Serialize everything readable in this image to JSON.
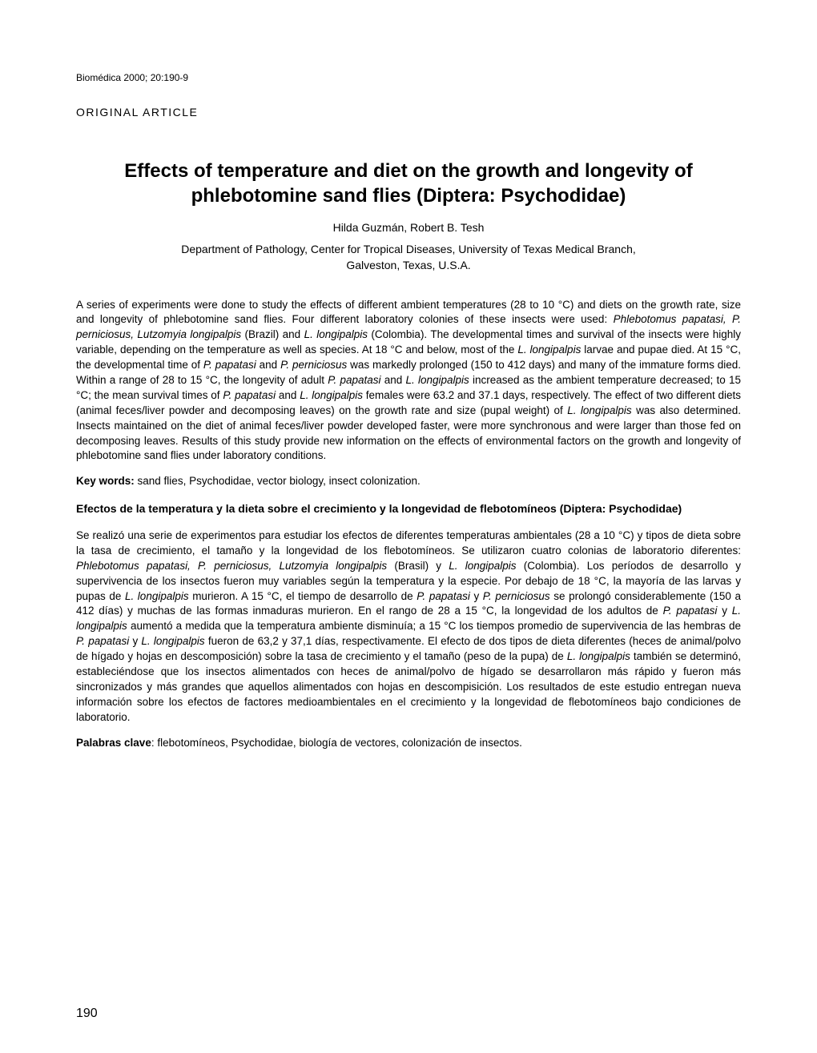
{
  "journal_ref": "Biomédica 2000; 20:190-9",
  "article_type": "ORIGINAL ARTICLE",
  "title": "Effects of temperature and diet on the growth and longevity of phlebotomine sand flies (Diptera: Psychodidae)",
  "authors": "Hilda Guzmán, Robert B. Tesh",
  "affiliation_line1": "Department of Pathology, Center for Tropical Diseases, University of Texas Medical Branch,",
  "affiliation_line2": "Galveston, Texas, U.S.A.",
  "keywords_label_en": "Key words:",
  "keywords_en": " sand flies, Psychodidae, vector biology, insect colonization.",
  "title_es": "Efectos de la temperatura y la dieta sobre el crecimiento y la longevidad de flebotomíneos (Diptera: Psychodidae)",
  "keywords_label_es": "Palabras clave",
  "keywords_es": ": flebotomíneos, Psychodidae, biología de vectores, colonización de insectos.",
  "page_number": "190",
  "colors": {
    "background": "#ffffff",
    "text": "#000000"
  },
  "typography": {
    "body_font": "Arial, Helvetica, sans-serif",
    "title_size": 24,
    "body_size": 13.5
  }
}
